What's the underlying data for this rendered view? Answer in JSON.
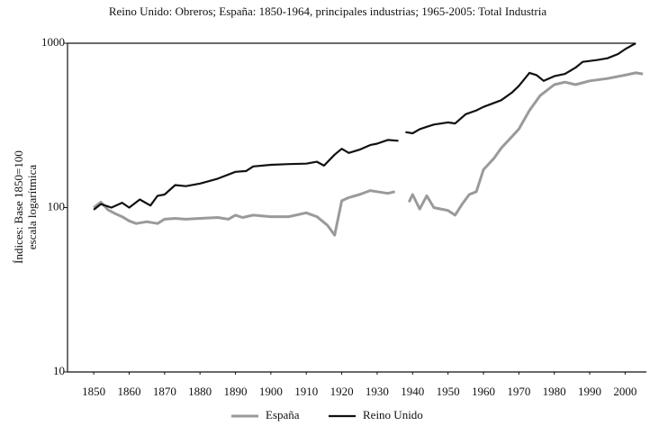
{
  "chart_data": {
    "type": "line",
    "title": "Reino Unido: Obreros; España: 1850-1964, principales industrias; 1965-2005: Total Industria",
    "y_label": [
      "Índices: Base 1850=100",
      "escala logarítmica"
    ],
    "log_y": true,
    "xlim": [
      1842.6,
      2006
    ],
    "xticks": [
      1850,
      1860,
      1870,
      1880,
      1890,
      1900,
      1910,
      1920,
      1930,
      1940,
      1950,
      1960,
      1970,
      1980,
      1990,
      2000
    ],
    "ylim": [
      10,
      1000
    ],
    "yticks": [
      10,
      100,
      1000
    ],
    "legend": "bottom",
    "series": [
      {
        "name": "España",
        "color": "#9a9a9a",
        "x": [
          1850,
          1852,
          1854,
          1856,
          1858,
          1860,
          1862,
          1865,
          1868,
          1870,
          1873,
          1876,
          1880,
          1885,
          1888,
          1890,
          1892,
          1895,
          1900,
          1905,
          1910,
          1913,
          1916,
          1918,
          1920,
          1922,
          1925,
          1928,
          1930,
          1933,
          1935,
          1937,
          1939,
          1940,
          1942,
          1944,
          1946,
          1948,
          1950,
          1952,
          1954,
          1956,
          1958,
          1960,
          1963,
          1965,
          1968,
          1970,
          1973,
          1976,
          1980,
          1983,
          1986,
          1990,
          1995,
          2000,
          2003,
          2005
        ],
        "values": [
          100,
          108,
          97,
          92,
          88,
          83,
          80,
          82,
          80,
          85,
          86,
          85,
          86,
          87,
          85,
          90,
          87,
          90,
          88,
          88,
          93,
          88,
          78,
          68,
          110,
          115,
          120,
          127,
          125,
          122,
          125,
          null,
          108,
          120,
          98,
          118,
          100,
          98,
          96,
          90,
          105,
          120,
          125,
          170,
          200,
          230,
          270,
          300,
          390,
          480,
          560,
          580,
          560,
          590,
          610,
          640,
          660,
          650
        ]
      },
      {
        "name": "Reino Unido",
        "color": "#111111",
        "x": [
          1850,
          1852,
          1855,
          1858,
          1860,
          1863,
          1866,
          1868,
          1870,
          1873,
          1876,
          1880,
          1885,
          1890,
          1893,
          1895,
          1900,
          1905,
          1910,
          1913,
          1915,
          1918,
          1920,
          1922,
          1925,
          1928,
          1930,
          1933,
          1936,
          1937,
          1938,
          1940,
          1942,
          1944,
          1946,
          1950,
          1952,
          1955,
          1958,
          1960,
          1965,
          1968,
          1970,
          1973,
          1975,
          1977,
          1980,
          1983,
          1986,
          1988,
          1992,
          1995,
          1998,
          2000,
          2003
        ],
        "values": [
          97,
          105,
          100,
          107,
          100,
          112,
          103,
          118,
          120,
          137,
          135,
          140,
          150,
          165,
          167,
          178,
          182,
          184,
          185,
          190,
          180,
          210,
          228,
          215,
          225,
          240,
          245,
          258,
          255,
          null,
          288,
          283,
          300,
          310,
          320,
          330,
          325,
          370,
          390,
          410,
          450,
          500,
          550,
          660,
          640,
          590,
          630,
          650,
          710,
          770,
          790,
          810,
          860,
          920,
          1000
        ]
      }
    ]
  }
}
